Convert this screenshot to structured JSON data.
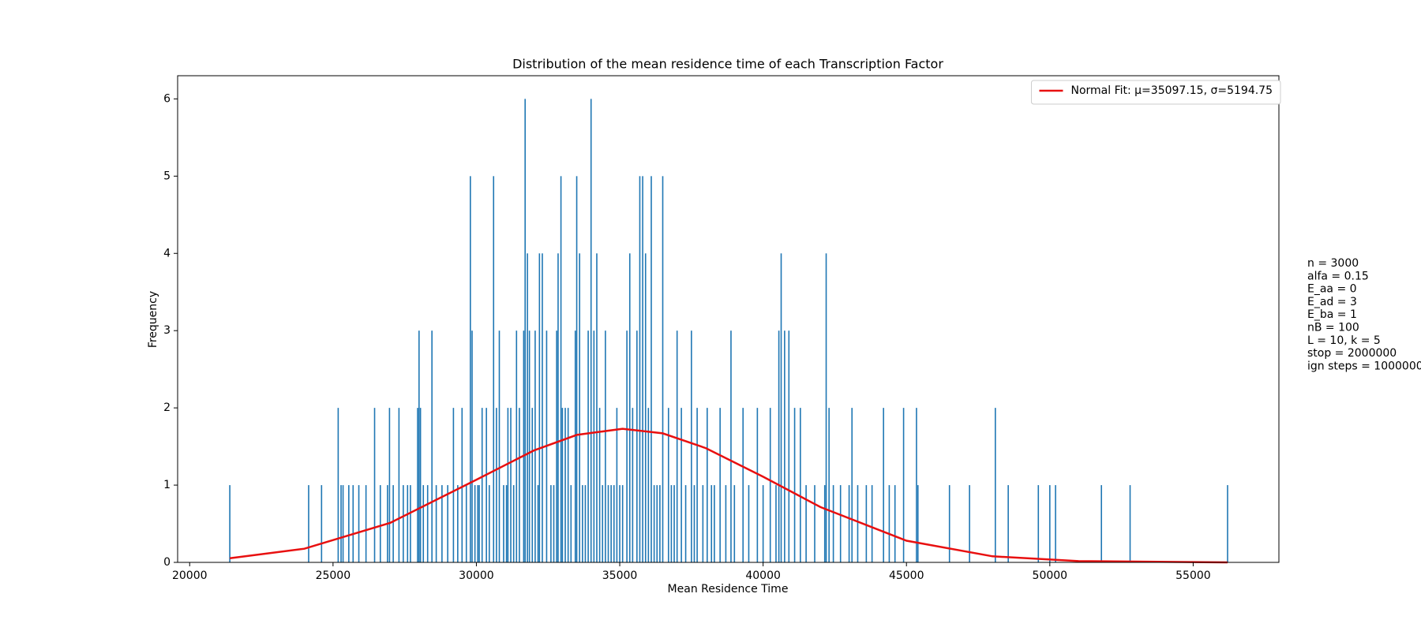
{
  "chart_data": {
    "type": "histogram",
    "title": "Distribution of the mean residence time of each Transcription Factor",
    "x_label": "Mean Residence Time",
    "y_label": "Frequency",
    "xlim": [
      19580,
      57990
    ],
    "xticks": [
      20000,
      25000,
      30000,
      35000,
      40000,
      45000,
      50000,
      55000
    ],
    "ylim": [
      0,
      6.3
    ],
    "yticks": [
      0,
      1,
      2,
      3,
      4,
      5,
      6
    ],
    "legend": "upper right",
    "annotation": [
      "n = 3000",
      "alfa = 0.15",
      "E_aa = 0",
      "E_ad = 3",
      "E_ba = 1",
      "nB = 100",
      "L = 10, k = 5",
      "stop = 2000000",
      "ign steps = 1000000"
    ],
    "series": [
      {
        "type": "bar",
        "color": "#1f77b4",
        "x": [
          21400,
          24150,
          24600,
          25180,
          25280,
          25350,
          25550,
          25700,
          25900,
          26150,
          26450,
          26650,
          26900,
          26970,
          27100,
          27300,
          27450,
          27600,
          27700,
          27950,
          28000,
          28050,
          28150,
          28300,
          28450,
          28600,
          28800,
          29000,
          29200,
          29350,
          29500,
          29650,
          29790,
          29850,
          29950,
          30050,
          30100,
          30200,
          30350,
          30450,
          30600,
          30700,
          30800,
          30950,
          31050,
          31100,
          31200,
          31300,
          31400,
          31500,
          31650,
          31700,
          31780,
          31850,
          31950,
          32050,
          32150,
          32200,
          32300,
          32450,
          32600,
          32700,
          32800,
          32850,
          32950,
          33000,
          33100,
          33200,
          33300,
          33450,
          33500,
          33600,
          33700,
          33800,
          33900,
          34000,
          34100,
          34200,
          34300,
          34400,
          34500,
          34600,
          34700,
          34800,
          34900,
          35000,
          35100,
          35250,
          35350,
          35450,
          35600,
          35700,
          35800,
          35900,
          36000,
          36100,
          36200,
          36300,
          36400,
          36500,
          36700,
          36800,
          36900,
          37000,
          37150,
          37300,
          37500,
          37600,
          37700,
          37900,
          38050,
          38200,
          38300,
          38500,
          38700,
          38880,
          39000,
          39300,
          39500,
          39800,
          40000,
          40250,
          40450,
          40550,
          40630,
          40750,
          40900,
          41100,
          41300,
          41500,
          41800,
          42150,
          42200,
          42300,
          42450,
          42700,
          43000,
          43100,
          43300,
          43600,
          43800,
          44200,
          44400,
          44600,
          44900,
          45350,
          45400,
          46500,
          47200,
          48100,
          48550,
          49600,
          50000,
          50200,
          51800,
          52800,
          56200
        ],
        "values": [
          1,
          1,
          1,
          2,
          1,
          1,
          1,
          1,
          1,
          1,
          2,
          1,
          1,
          2,
          1,
          2,
          1,
          1,
          1,
          2,
          3,
          2,
          1,
          1,
          3,
          1,
          1,
          1,
          2,
          1,
          2,
          1,
          5,
          3,
          1,
          1,
          1,
          2,
          2,
          1,
          5,
          2,
          3,
          1,
          1,
          2,
          2,
          1,
          3,
          2,
          3,
          6,
          4,
          3,
          2,
          3,
          1,
          4,
          4,
          3,
          1,
          1,
          3,
          4,
          5,
          2,
          2,
          2,
          1,
          3,
          5,
          4,
          1,
          1,
          3,
          6,
          3,
          4,
          2,
          1,
          3,
          1,
          1,
          1,
          2,
          1,
          1,
          3,
          4,
          2,
          3,
          5,
          5,
          4,
          2,
          5,
          1,
          1,
          1,
          5,
          2,
          1,
          1,
          3,
          2,
          1,
          3,
          1,
          2,
          1,
          2,
          1,
          1,
          2,
          1,
          3,
          1,
          2,
          1,
          2,
          1,
          2,
          1,
          3,
          4,
          3,
          3,
          2,
          2,
          1,
          1,
          1,
          4,
          2,
          1,
          1,
          1,
          2,
          1,
          1,
          1,
          2,
          1,
          1,
          2,
          2,
          1,
          1,
          1,
          2,
          1,
          1,
          1,
          1,
          1,
          1,
          1
        ]
      },
      {
        "type": "line",
        "name": "Normal Fit: μ=35097.15, σ=5194.75",
        "color": "#e81010",
        "x": [
          21400,
          24000,
          27000,
          30000,
          32000,
          33500,
          35097,
          36500,
          38000,
          40000,
          42000,
          45000,
          48000,
          51000,
          56200
        ],
        "values": [
          0.053,
          0.177,
          0.513,
          1.07,
          1.448,
          1.65,
          1.73,
          1.67,
          1.48,
          1.109,
          0.716,
          0.281,
          0.079,
          0.016,
          0.0
        ]
      }
    ]
  }
}
